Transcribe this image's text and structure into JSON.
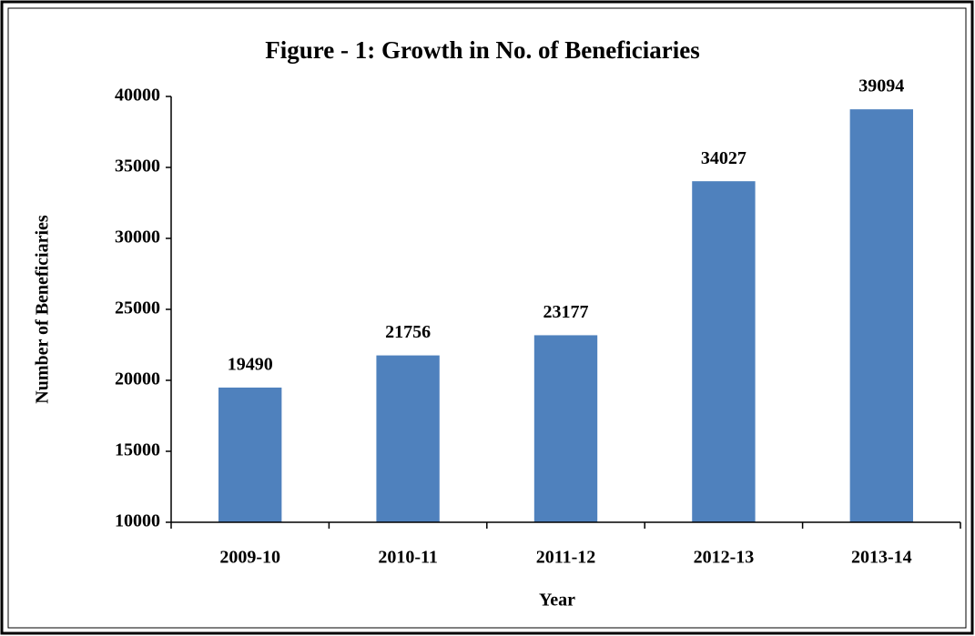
{
  "chart_data": {
    "type": "bar",
    "title": "Figure - 1: Growth in No. of Beneficiaries",
    "x_label": "Year",
    "y_label": "Number of Beneficiaries",
    "categories": [
      "2009-10",
      "2010-11",
      "2011-12",
      "2012-13",
      "2013-14"
    ],
    "values": [
      19490,
      21756,
      23177,
      34027,
      39094
    ],
    "color": "#4f81bd",
    "ylim": [
      10000,
      40000
    ],
    "yticks": [
      10000,
      15000,
      20000,
      25000,
      30000,
      35000,
      40000
    ],
    "grid": false
  }
}
